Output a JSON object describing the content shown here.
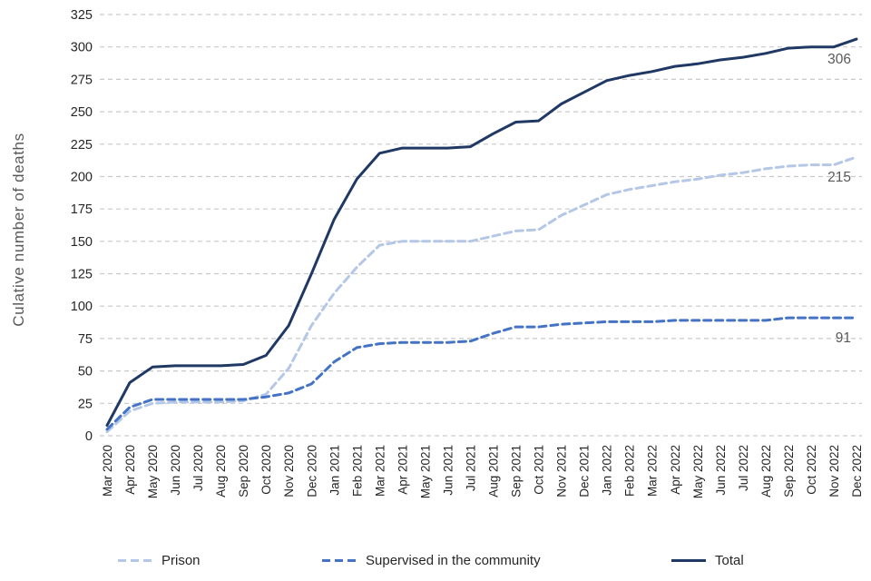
{
  "chart": {
    "y_axis_title": "Culative number of deaths",
    "colors": {
      "prison": "#b4c7e7",
      "supervised": "#4472c4",
      "total": "#1f3864",
      "gridline": "#c9c9c9",
      "tick_text": "#262626",
      "end_label_text": "#595959"
    }
  },
  "chart_data": {
    "type": "line",
    "title": "",
    "xlabel": "",
    "ylabel": "Culative number of deaths",
    "ylim": [
      0,
      325
    ],
    "ytick_step": 25,
    "grid": true,
    "grid_style": "dashed",
    "legend_position": "bottom",
    "end_value_labels": [
      215,
      91,
      306
    ],
    "categories": [
      "Mar 2020",
      "Apr 2020",
      "May 2020",
      "Jun 2020",
      "Jul 2020",
      "Aug 2020",
      "Sep 2020",
      "Oct 2020",
      "Nov 2020",
      "Dec 2020",
      "Jan 2021",
      "Feb 2021",
      "Mar 2021",
      "Apr 2021",
      "May 2021",
      "Jun 2021",
      "Jul 2021",
      "Aug 2021",
      "Sep 2021",
      "Oct 2021",
      "Nov 2021",
      "Dec 2021",
      "Jan 2022",
      "Feb 2022",
      "Mar 2022",
      "Apr 2022",
      "May 2022",
      "Jun 2022",
      "Jul 2022",
      "Aug 2022",
      "Sep 2022",
      "Oct 2022",
      "Nov 2022",
      "Dec 2022"
    ],
    "series": [
      {
        "name": "Prison",
        "color": "#b4c7e7",
        "style": "dashed",
        "values": [
          3,
          19,
          25,
          26,
          26,
          26,
          27,
          32,
          52,
          85,
          110,
          130,
          147,
          150,
          150,
          150,
          150,
          154,
          158,
          159,
          170,
          178,
          186,
          190,
          193,
          196,
          198,
          201,
          203,
          206,
          208,
          209,
          209,
          215
        ]
      },
      {
        "name": "Supervised in the community",
        "color": "#4472c4",
        "style": "dashed",
        "values": [
          5,
          22,
          28,
          28,
          28,
          28,
          28,
          30,
          33,
          40,
          57,
          68,
          71,
          72,
          72,
          72,
          73,
          79,
          84,
          84,
          86,
          87,
          88,
          88,
          88,
          89,
          89,
          89,
          89,
          89,
          91,
          91,
          91,
          91
        ]
      },
      {
        "name": "Total",
        "color": "#1f3864",
        "style": "solid",
        "values": [
          8,
          41,
          53,
          54,
          54,
          54,
          55,
          62,
          85,
          125,
          167,
          198,
          218,
          222,
          222,
          222,
          223,
          233,
          242,
          243,
          256,
          265,
          274,
          278,
          281,
          285,
          287,
          290,
          292,
          295,
          299,
          300,
          300,
          306
        ]
      }
    ]
  },
  "legend": {
    "items": [
      {
        "label": "Prison"
      },
      {
        "label": "Supervised in the community"
      },
      {
        "label": "Total"
      }
    ]
  }
}
